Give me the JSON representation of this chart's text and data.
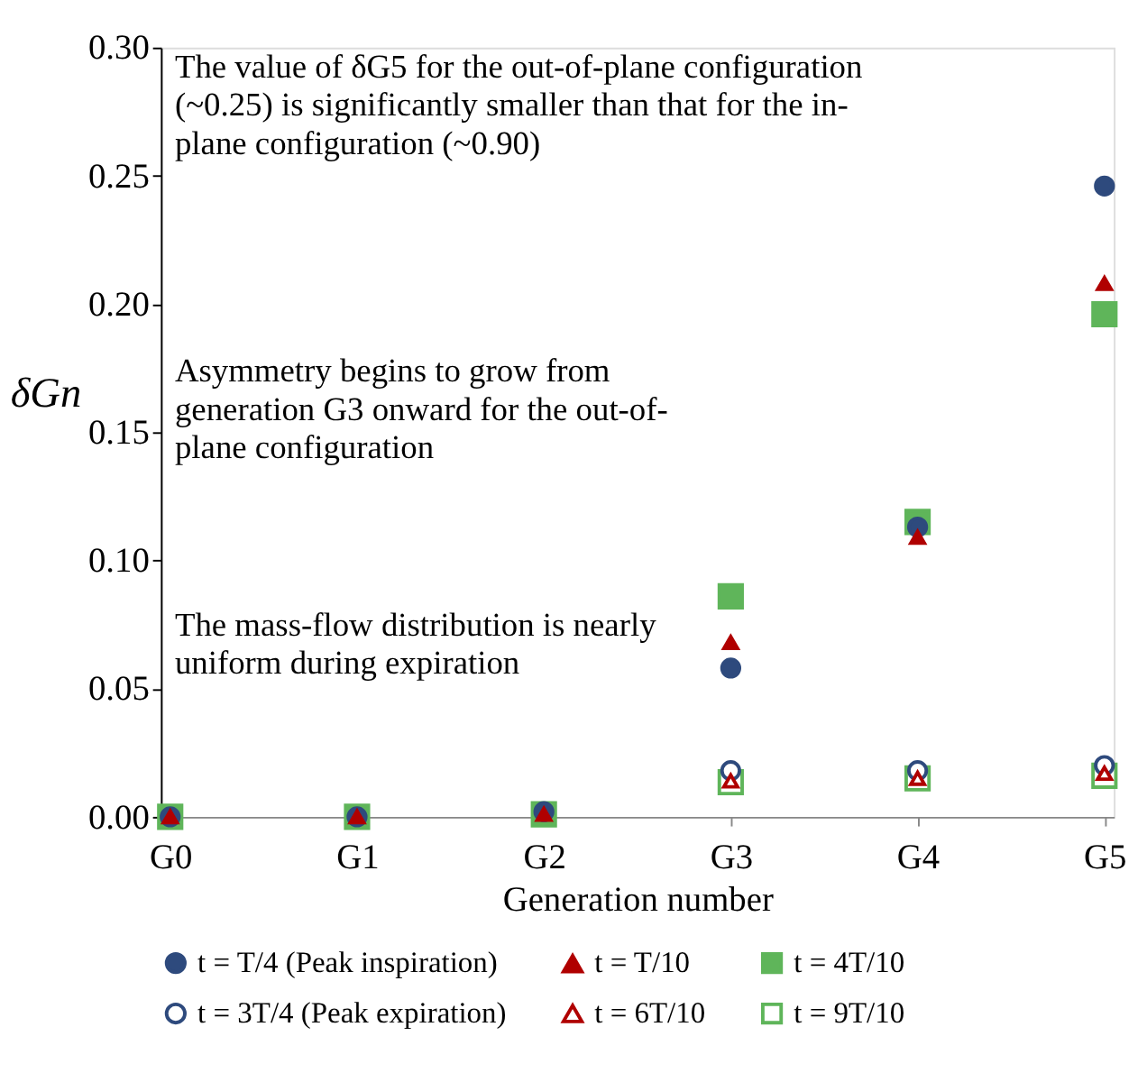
{
  "chart_data": {
    "type": "scatter",
    "xlabel": "Generation number",
    "ylabel": "δGn",
    "categories": [
      "G0",
      "G1",
      "G2",
      "G3",
      "G4",
      "G5"
    ],
    "series": [
      {
        "name": "t = T/4 (Peak inspiration)",
        "color": "#2e4a7d",
        "marker": "circle",
        "values": [
          0,
          0,
          0.002,
          0.058,
          0.113,
          0.246
        ]
      },
      {
        "name": "t = T/10",
        "color": "#b00000",
        "marker": "triangle",
        "values": [
          0,
          0,
          0.001,
          0.068,
          0.109,
          0.208
        ]
      },
      {
        "name": "t = 4T/10",
        "color": "#5fb55a",
        "marker": "square",
        "values": [
          0,
          0,
          0.001,
          0.086,
          0.115,
          0.196
        ]
      },
      {
        "name": "t = 3T/4 (Peak expiration)",
        "color": "#2e4a7d",
        "marker": "circle",
        "values": [
          null,
          null,
          null,
          0.018,
          0.018,
          0.02
        ]
      },
      {
        "name": "t = 6T/10",
        "color": "#b00000",
        "marker": "triangle",
        "values": [
          null,
          null,
          null,
          0.014,
          0.015,
          0.017
        ]
      },
      {
        "name": "t = 9T/10",
        "color": "#5fb55a",
        "marker": "square",
        "values": [
          null,
          null,
          null,
          0.0135,
          0.015,
          0.016
        ]
      }
    ],
    "ylim": [
      0,
      0.3
    ],
    "yticks": [
      {
        "value": 0,
        "label": "0.00"
      },
      {
        "value": 0.05,
        "label": "0.05"
      },
      {
        "value": 0.1,
        "label": "0.10"
      },
      {
        "value": 0.15,
        "label": "0.15"
      },
      {
        "value": 0.2,
        "label": "0.20"
      },
      {
        "value": 0.25,
        "label": "0.25"
      },
      {
        "value": 0.3,
        "label": "0.30"
      }
    ],
    "annotations": [
      "The value of δG5 for the out-of-plane configuration (~0.25) is significantly smaller than that for the in-plane configuration (~0.90)",
      "Asymmetry begins to grow from generation G3 onward for the out-of-plane configuration",
      "The mass-flow distribution is nearly uniform during expiration"
    ],
    "grid": false,
    "legend": "bottom"
  }
}
